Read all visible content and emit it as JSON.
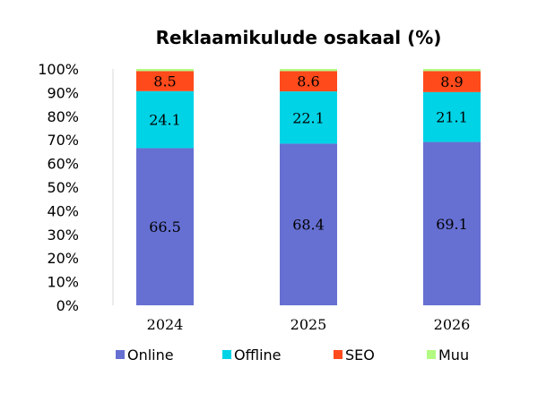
{
  "chart_data": {
    "type": "bar",
    "stacked": true,
    "percent_stacked": true,
    "title": "Reklaamikulude osakaal (%)",
    "xlabel": "",
    "ylabel": "",
    "ylim": [
      0,
      100
    ],
    "y_tick_labels": [
      "0%",
      "10%",
      "20%",
      "30%",
      "40%",
      "50%",
      "60%",
      "70%",
      "80%",
      "90%",
      "100%"
    ],
    "y_ticks": [
      0,
      10,
      20,
      30,
      40,
      50,
      60,
      70,
      80,
      90,
      100
    ],
    "categories": [
      "2024",
      "2025",
      "2026"
    ],
    "series": [
      {
        "name": "Online",
        "values": [
          66.5,
          68.4,
          69.1
        ],
        "color": "#6670D2"
      },
      {
        "name": "Offline",
        "values": [
          24.1,
          22.1,
          21.1
        ],
        "color": "#00D3E6"
      },
      {
        "name": "SEO",
        "values": [
          8.5,
          8.6,
          8.9
        ],
        "color": "#FF4A1C"
      },
      {
        "name": "Muu",
        "values": [
          0.9,
          0.9,
          0.9
        ],
        "color": "#B3FA82"
      }
    ],
    "data_labels_shown_for": [
      "Online",
      "Offline",
      "SEO"
    ],
    "grid": false,
    "legend_position": "bottom"
  }
}
